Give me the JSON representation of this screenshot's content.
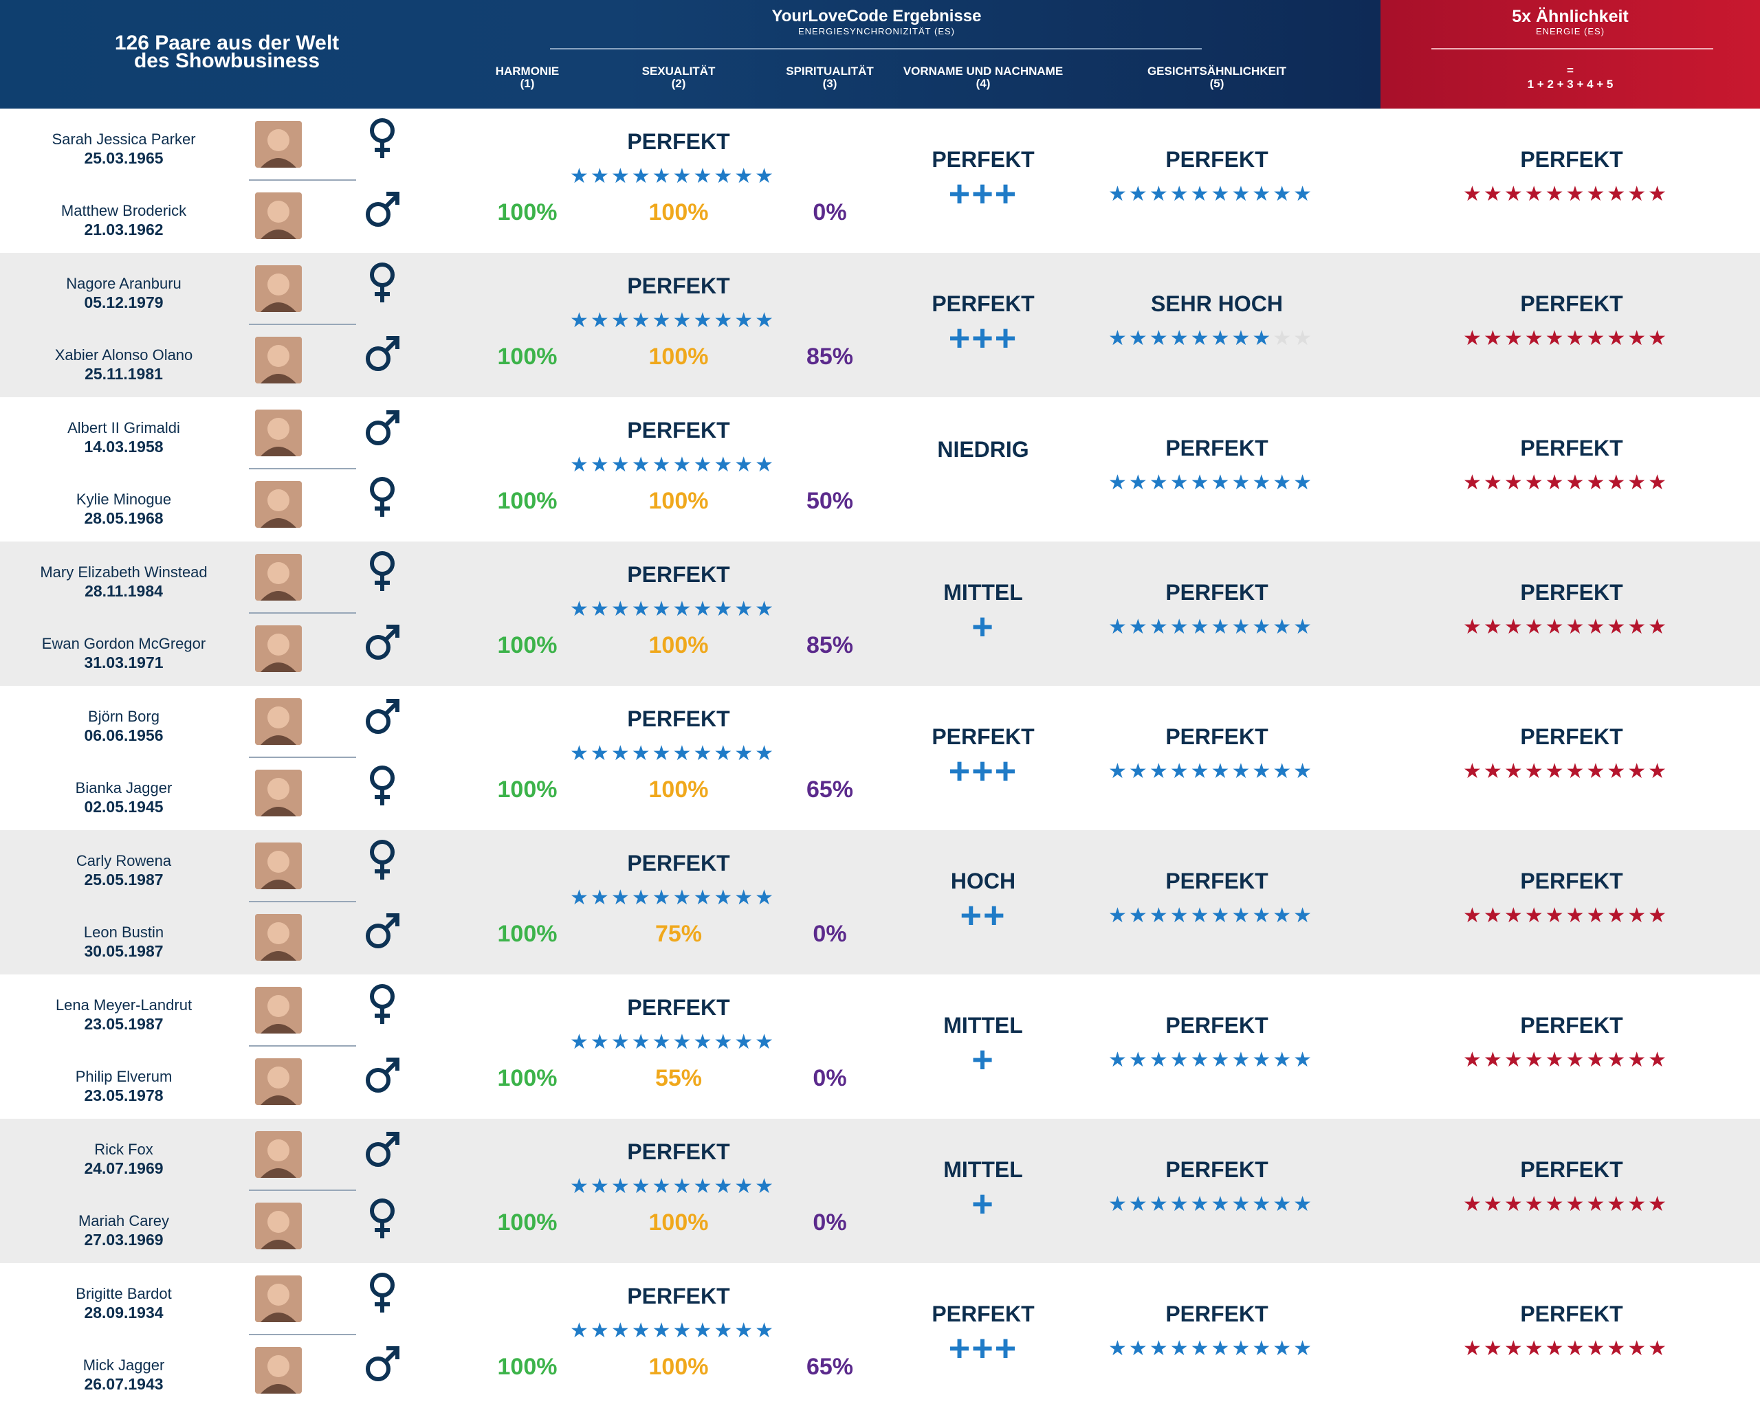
{
  "header": {
    "left_title_1": "126 Paare aus der Welt",
    "left_title_2": "des Showbusiness",
    "center_title": "YourLoveCode Ergebnisse",
    "center_subtitle": "ENERGIESYNCHRONIZITÄT (ES)",
    "columns": [
      {
        "label": "HARMONIE",
        "num": "(1)"
      },
      {
        "label": "SEXUALITÄT",
        "num": "(2)"
      },
      {
        "label": "SPIRITUALITÄT",
        "num": "(3)"
      },
      {
        "label": "VORNAME UND NACHNAME",
        "num": "(4)"
      },
      {
        "label": "GESICHTSÄHNLICHKEIT",
        "num": "(5)"
      }
    ],
    "right_title": "5x Ähnlichkeit",
    "right_subtitle": "ENERGIE (ES)",
    "eq": "=",
    "formula": "1 + 2 + 3 + 4 + 5"
  },
  "colors": {
    "navy": "#0d2e4e",
    "blue": "#1f7bc7",
    "red": "#b5152d",
    "green": "#3cb34a",
    "orange": "#f0a81c",
    "purple": "#5b2a8c",
    "gray_star": "#dedede"
  },
  "icons": {
    "female": "female-symbol-icon",
    "male": "male-symbol-icon",
    "star": "star-icon",
    "plus": "plus-icon"
  },
  "rows": [
    {
      "p1": {
        "name": "Sarah Jessica Parker",
        "date": "25.03.1965",
        "gender": "female"
      },
      "p2": {
        "name": "Matthew Broderick",
        "date": "21.03.1962",
        "gender": "male"
      },
      "main_label": "PERFEKT",
      "main_stars": 10,
      "harmonie": "100%",
      "sexualitaet": "100%",
      "spiritualitaet": "0%",
      "name_label": "PERFEKT",
      "name_plus": "+++",
      "face_label": "PERFEKT",
      "face_stars": 10,
      "total_label": "PERFEKT",
      "total_stars": 10
    },
    {
      "p1": {
        "name": "Nagore Aranburu",
        "date": "05.12.1979",
        "gender": "female"
      },
      "p2": {
        "name": "Xabier Alonso Olano",
        "date": "25.11.1981",
        "gender": "male"
      },
      "main_label": "PERFEKT",
      "main_stars": 10,
      "harmonie": "100%",
      "sexualitaet": "100%",
      "spiritualitaet": "85%",
      "name_label": "PERFEKT",
      "name_plus": "+++",
      "face_label": "SEHR HOCH",
      "face_stars": 8,
      "total_label": "PERFEKT",
      "total_stars": 10
    },
    {
      "p1": {
        "name": "Albert II Grimaldi",
        "date": "14.03.1958",
        "gender": "male"
      },
      "p2": {
        "name": "Kylie Minogue",
        "date": "28.05.1968",
        "gender": "female"
      },
      "main_label": "PERFEKT",
      "main_stars": 10,
      "harmonie": "100%",
      "sexualitaet": "100%",
      "spiritualitaet": "50%",
      "name_label": "NIEDRIG",
      "name_plus": "",
      "face_label": "PERFEKT",
      "face_stars": 10,
      "total_label": "PERFEKT",
      "total_stars": 10
    },
    {
      "p1": {
        "name": "Mary Elizabeth Winstead",
        "date": "28.11.1984",
        "gender": "female"
      },
      "p2": {
        "name": "Ewan Gordon McGregor",
        "date": "31.03.1971",
        "gender": "male"
      },
      "main_label": "PERFEKT",
      "main_stars": 10,
      "harmonie": "100%",
      "sexualitaet": "100%",
      "spiritualitaet": "85%",
      "name_label": "MITTEL",
      "name_plus": "+",
      "face_label": "PERFEKT",
      "face_stars": 10,
      "total_label": "PERFEKT",
      "total_stars": 10
    },
    {
      "p1": {
        "name": "Björn Borg",
        "date": "06.06.1956",
        "gender": "male"
      },
      "p2": {
        "name": "Bianka Jagger",
        "date": "02.05.1945",
        "gender": "female"
      },
      "main_label": "PERFEKT",
      "main_stars": 10,
      "harmonie": "100%",
      "sexualitaet": "100%",
      "spiritualitaet": "65%",
      "name_label": "PERFEKT",
      "name_plus": "+++",
      "face_label": "PERFEKT",
      "face_stars": 10,
      "total_label": "PERFEKT",
      "total_stars": 10
    },
    {
      "p1": {
        "name": "Carly Rowena",
        "date": "25.05.1987",
        "gender": "female"
      },
      "p2": {
        "name": "Leon Bustin",
        "date": "30.05.1987",
        "gender": "male"
      },
      "main_label": "PERFEKT",
      "main_stars": 10,
      "harmonie": "100%",
      "sexualitaet": "75%",
      "spiritualitaet": "0%",
      "name_label": "HOCH",
      "name_plus": "++",
      "face_label": "PERFEKT",
      "face_stars": 10,
      "total_label": "PERFEKT",
      "total_stars": 10
    },
    {
      "p1": {
        "name": "Lena Meyer-Landrut",
        "date": "23.05.1987",
        "gender": "female"
      },
      "p2": {
        "name": "Philip Elverum",
        "date": "23.05.1978",
        "gender": "male"
      },
      "main_label": "PERFEKT",
      "main_stars": 10,
      "harmonie": "100%",
      "sexualitaet": "55%",
      "spiritualitaet": "0%",
      "name_label": "MITTEL",
      "name_plus": "+",
      "face_label": "PERFEKT",
      "face_stars": 10,
      "total_label": "PERFEKT",
      "total_stars": 10
    },
    {
      "p1": {
        "name": "Rick Fox",
        "date": "24.07.1969",
        "gender": "male"
      },
      "p2": {
        "name": "Mariah Carey",
        "date": "27.03.1969",
        "gender": "female"
      },
      "main_label": "PERFEKT",
      "main_stars": 10,
      "harmonie": "100%",
      "sexualitaet": "100%",
      "spiritualitaet": "0%",
      "name_label": "MITTEL",
      "name_plus": "+",
      "face_label": "PERFEKT",
      "face_stars": 10,
      "total_label": "PERFEKT",
      "total_stars": 10
    },
    {
      "p1": {
        "name": "Brigitte Bardot",
        "date": "28.09.1934",
        "gender": "female"
      },
      "p2": {
        "name": "Mick Jagger",
        "date": "26.07.1943",
        "gender": "male"
      },
      "main_label": "PERFEKT",
      "main_stars": 10,
      "harmonie": "100%",
      "sexualitaet": "100%",
      "spiritualitaet": "65%",
      "name_label": "PERFEKT",
      "name_plus": "+++",
      "face_label": "PERFEKT",
      "face_stars": 10,
      "total_label": "PERFEKT",
      "total_stars": 10
    }
  ]
}
